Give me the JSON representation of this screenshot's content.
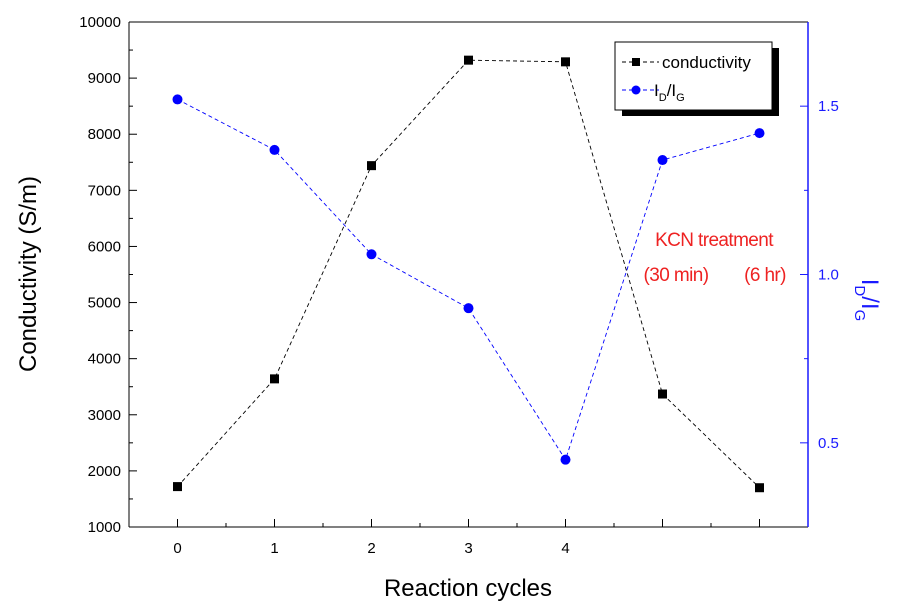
{
  "chart_data": {
    "type": "line",
    "title": "",
    "xlabel": "Reaction cycles",
    "ylabel": "Conductivity (S/m)",
    "y2label_parts": [
      "I",
      "D",
      "/I",
      "G"
    ],
    "x": [
      0,
      1,
      2,
      3,
      4,
      5,
      6
    ],
    "x_tick_labels": [
      "0",
      "1",
      "2",
      "3",
      "4"
    ],
    "xlim": [
      -0.5,
      6.5
    ],
    "ylim": [
      1000,
      10000
    ],
    "y_ticks": [
      1000,
      2000,
      3000,
      4000,
      5000,
      6000,
      7000,
      8000,
      9000,
      10000
    ],
    "y2lim": [
      0.25,
      1.75
    ],
    "y2_ticks": [
      "0.5",
      "1.0",
      "1.5"
    ],
    "grid": false,
    "legend_position": "top-right",
    "series": [
      {
        "name": "conductivity",
        "axis": "left",
        "marker": "square",
        "color": "#000000",
        "values": [
          1720,
          3640,
          7440,
          9320,
          9290,
          3370,
          1700
        ]
      },
      {
        "name_parts": [
          "I",
          "D",
          "/I",
          "G"
        ],
        "axis": "right",
        "marker": "circle",
        "color": "#0000ff",
        "values": [
          1.52,
          1.37,
          1.06,
          0.9,
          0.45,
          1.34,
          1.42
        ]
      }
    ],
    "annotations": {
      "line1": "KCN treatment",
      "line2a": "(30 min)",
      "line2b": "(6 hr)"
    },
    "colors": {
      "left_axis": "#000000",
      "right_axis": "#1a1aff",
      "annotation": "#ee2222"
    }
  }
}
